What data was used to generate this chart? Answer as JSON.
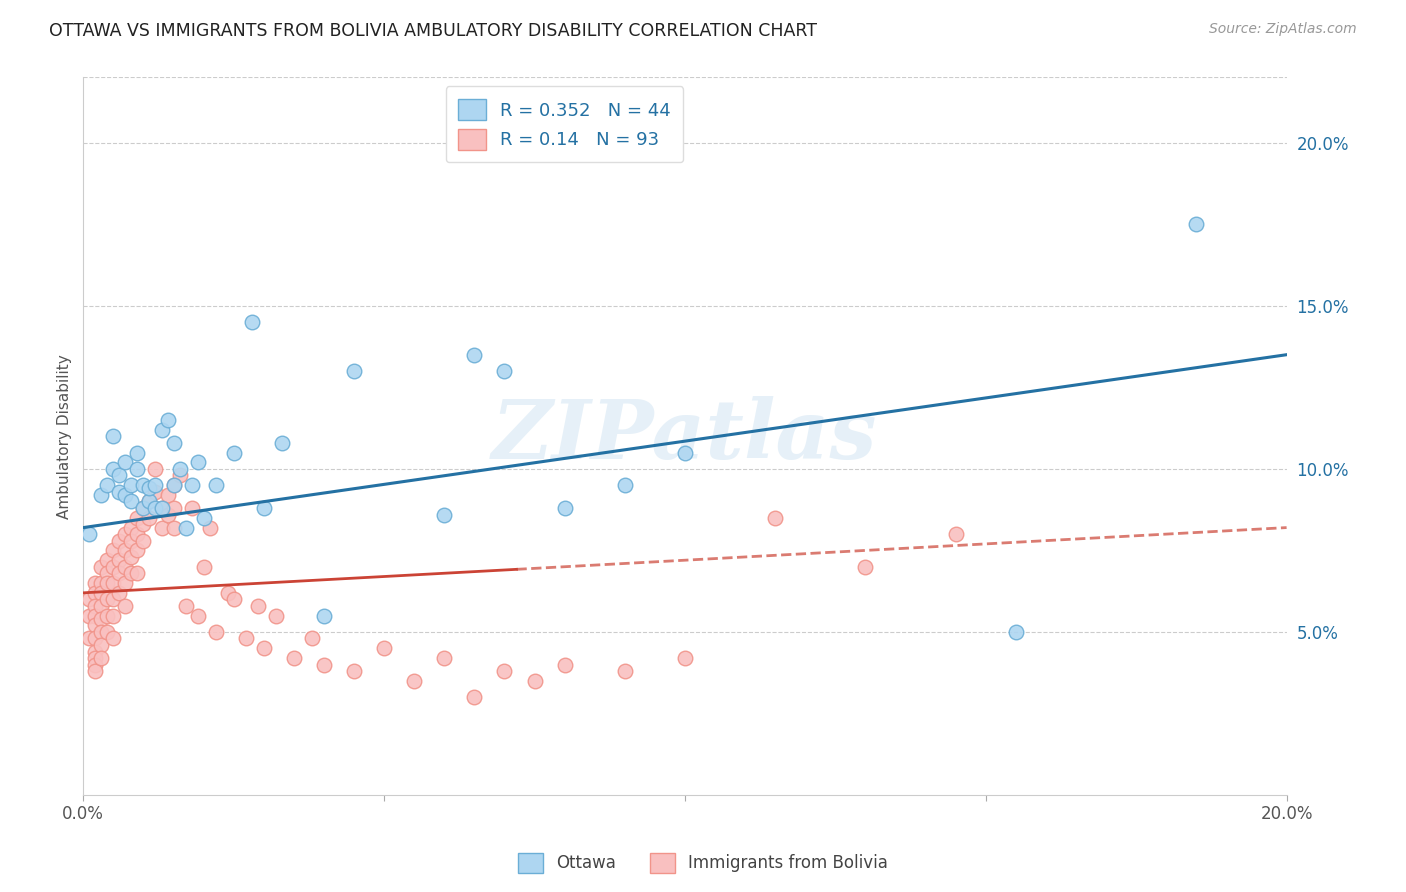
{
  "title": "OTTAWA VS IMMIGRANTS FROM BOLIVIA AMBULATORY DISABILITY CORRELATION CHART",
  "source": "Source: ZipAtlas.com",
  "ylabel": "Ambulatory Disability",
  "xlim": [
    0.0,
    0.2
  ],
  "ylim": [
    0.0,
    0.22
  ],
  "xticks": [
    0.0,
    0.05,
    0.1,
    0.15,
    0.2
  ],
  "xticklabels": [
    "0.0%",
    "",
    "",
    "",
    "20.0%"
  ],
  "yticks_right": [
    0.05,
    0.1,
    0.15,
    0.2
  ],
  "ytick_labels_right": [
    "5.0%",
    "10.0%",
    "15.0%",
    "20.0%"
  ],
  "ottawa_R": 0.352,
  "ottawa_N": 44,
  "bolivia_R": 0.14,
  "bolivia_N": 93,
  "ottawa_color": "#6baed6",
  "ottawa_fill": "#aed6f1",
  "bolivia_color": "#f1948a",
  "bolivia_fill": "#f9c0c0",
  "trend_blue_color": "#2471a3",
  "trend_pink_color": "#cb4335",
  "watermark": "ZIPatlas",
  "ottawa_x": [
    0.001,
    0.003,
    0.004,
    0.005,
    0.005,
    0.006,
    0.006,
    0.007,
    0.007,
    0.008,
    0.008,
    0.009,
    0.009,
    0.01,
    0.01,
    0.011,
    0.011,
    0.012,
    0.012,
    0.013,
    0.013,
    0.014,
    0.015,
    0.015,
    0.016,
    0.017,
    0.018,
    0.019,
    0.02,
    0.022,
    0.025,
    0.028,
    0.03,
    0.033,
    0.04,
    0.045,
    0.06,
    0.065,
    0.07,
    0.08,
    0.09,
    0.1,
    0.155,
    0.185
  ],
  "ottawa_y": [
    0.08,
    0.092,
    0.095,
    0.1,
    0.11,
    0.093,
    0.098,
    0.092,
    0.102,
    0.09,
    0.095,
    0.1,
    0.105,
    0.088,
    0.095,
    0.09,
    0.094,
    0.088,
    0.095,
    0.088,
    0.112,
    0.115,
    0.108,
    0.095,
    0.1,
    0.082,
    0.095,
    0.102,
    0.085,
    0.095,
    0.105,
    0.145,
    0.088,
    0.108,
    0.055,
    0.13,
    0.086,
    0.135,
    0.13,
    0.088,
    0.095,
    0.105,
    0.05,
    0.175
  ],
  "bolivia_x": [
    0.001,
    0.001,
    0.001,
    0.002,
    0.002,
    0.002,
    0.002,
    0.002,
    0.002,
    0.002,
    0.002,
    0.002,
    0.002,
    0.003,
    0.003,
    0.003,
    0.003,
    0.003,
    0.003,
    0.003,
    0.003,
    0.004,
    0.004,
    0.004,
    0.004,
    0.004,
    0.004,
    0.005,
    0.005,
    0.005,
    0.005,
    0.005,
    0.005,
    0.006,
    0.006,
    0.006,
    0.006,
    0.007,
    0.007,
    0.007,
    0.007,
    0.007,
    0.008,
    0.008,
    0.008,
    0.008,
    0.009,
    0.009,
    0.009,
    0.009,
    0.01,
    0.01,
    0.01,
    0.011,
    0.011,
    0.012,
    0.012,
    0.013,
    0.013,
    0.014,
    0.014,
    0.015,
    0.015,
    0.015,
    0.016,
    0.017,
    0.018,
    0.019,
    0.02,
    0.021,
    0.022,
    0.024,
    0.025,
    0.027,
    0.029,
    0.03,
    0.032,
    0.035,
    0.038,
    0.04,
    0.045,
    0.05,
    0.055,
    0.06,
    0.065,
    0.07,
    0.075,
    0.08,
    0.09,
    0.1,
    0.115,
    0.13,
    0.145
  ],
  "bolivia_y": [
    0.06,
    0.055,
    0.048,
    0.065,
    0.062,
    0.058,
    0.055,
    0.052,
    0.048,
    0.044,
    0.042,
    0.04,
    0.038,
    0.07,
    0.065,
    0.062,
    0.058,
    0.054,
    0.05,
    0.046,
    0.042,
    0.072,
    0.068,
    0.065,
    0.06,
    0.055,
    0.05,
    0.075,
    0.07,
    0.065,
    0.06,
    0.055,
    0.048,
    0.078,
    0.072,
    0.068,
    0.062,
    0.08,
    0.075,
    0.07,
    0.065,
    0.058,
    0.082,
    0.078,
    0.073,
    0.068,
    0.085,
    0.08,
    0.075,
    0.068,
    0.088,
    0.083,
    0.078,
    0.09,
    0.085,
    0.1,
    0.093,
    0.088,
    0.082,
    0.092,
    0.086,
    0.095,
    0.088,
    0.082,
    0.098,
    0.058,
    0.088,
    0.055,
    0.07,
    0.082,
    0.05,
    0.062,
    0.06,
    0.048,
    0.058,
    0.045,
    0.055,
    0.042,
    0.048,
    0.04,
    0.038,
    0.045,
    0.035,
    0.042,
    0.03,
    0.038,
    0.035,
    0.04,
    0.038,
    0.042,
    0.085,
    0.07,
    0.08
  ]
}
